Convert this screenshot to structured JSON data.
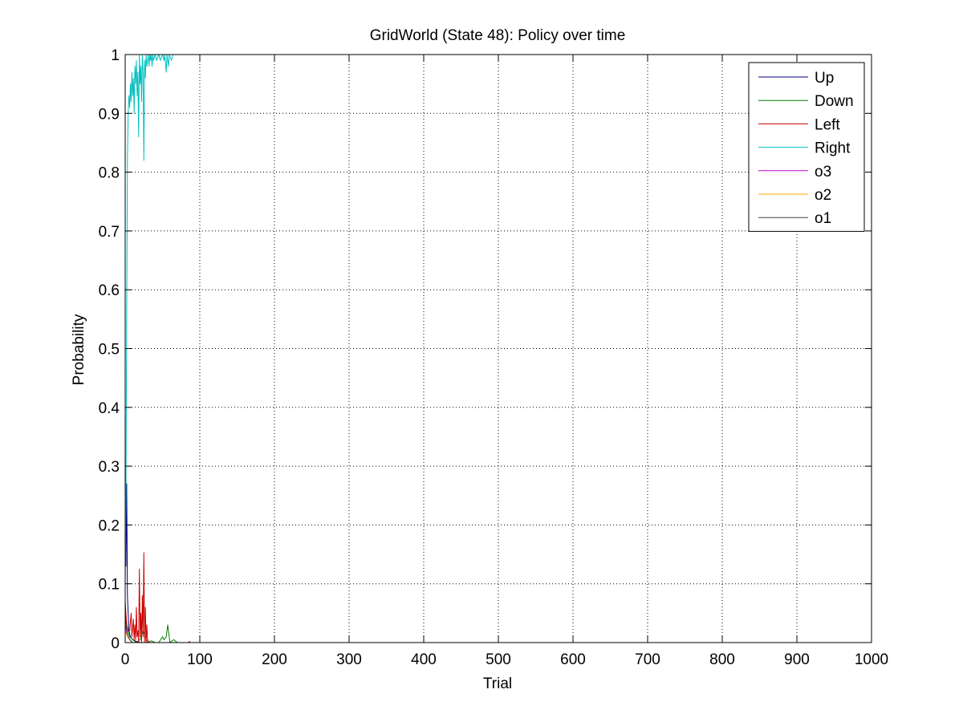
{
  "chart_data": {
    "type": "line",
    "title": "GridWorld (State 48): Policy over time",
    "xlabel": "Trial",
    "ylabel": "Probability",
    "xlim": [
      0,
      1000
    ],
    "ylim": [
      0,
      1
    ],
    "x_ticks": [
      0,
      100,
      200,
      300,
      400,
      500,
      600,
      700,
      800,
      900,
      1000
    ],
    "x_tick_labels": [
      "0",
      "100",
      "200",
      "300",
      "400",
      "500",
      "600",
      "700",
      "800",
      "900",
      "1000"
    ],
    "y_ticks": [
      0,
      0.1,
      0.2,
      0.3,
      0.4,
      0.5,
      0.6,
      0.7,
      0.8,
      0.9,
      1
    ],
    "y_tick_labels": [
      "0",
      "0.1",
      "0.2",
      "0.3",
      "0.4",
      "0.5",
      "0.6",
      "0.7",
      "0.8",
      "0.9",
      "1"
    ],
    "grid": true,
    "grid_style": "dotted",
    "legend_position": "top-right",
    "series": [
      {
        "name": "Up",
        "color": "#00007f",
        "points": [
          [
            0,
            0.25
          ],
          [
            1,
            0.13
          ],
          [
            2,
            0.27
          ],
          [
            3,
            0.08
          ],
          [
            4,
            0.05
          ],
          [
            5,
            0.02
          ],
          [
            7,
            0.01
          ],
          [
            10,
            0.005
          ],
          [
            15,
            0.002
          ],
          [
            20,
            0
          ],
          [
            1000,
            0
          ]
        ]
      },
      {
        "name": "Down",
        "color": "#007f00",
        "points": [
          [
            0,
            0.05
          ],
          [
            2,
            0.03
          ],
          [
            4,
            0.02
          ],
          [
            6,
            0.01
          ],
          [
            10,
            0.005
          ],
          [
            15,
            0
          ],
          [
            20,
            0.005
          ],
          [
            24,
            0.02
          ],
          [
            27,
            0.01
          ],
          [
            30,
            0
          ],
          [
            35,
            0.003
          ],
          [
            40,
            0
          ],
          [
            45,
            0
          ],
          [
            50,
            0.01
          ],
          [
            52,
            0.005
          ],
          [
            55,
            0.01
          ],
          [
            57,
            0.03
          ],
          [
            60,
            0
          ],
          [
            65,
            0.005
          ],
          [
            70,
            0
          ],
          [
            80,
            0
          ],
          [
            1000,
            0
          ]
        ]
      },
      {
        "name": "Left",
        "color": "#cc0000",
        "points": [
          [
            0,
            0.07
          ],
          [
            2,
            0.03
          ],
          [
            4,
            0.02
          ],
          [
            6,
            0.02
          ],
          [
            8,
            0.05
          ],
          [
            9,
            0.01
          ],
          [
            11,
            0.04
          ],
          [
            12,
            0.005
          ],
          [
            13,
            0.03
          ],
          [
            14,
            0.005
          ],
          [
            15,
            0.06
          ],
          [
            16,
            0.01
          ],
          [
            17,
            0.02
          ],
          [
            18,
            0
          ],
          [
            19,
            0.125
          ],
          [
            20,
            0.01
          ],
          [
            21,
            0.05
          ],
          [
            22,
            0
          ],
          [
            23,
            0.08
          ],
          [
            24,
            0.01
          ],
          [
            25,
            0.153
          ],
          [
            26,
            0
          ],
          [
            27,
            0.06
          ],
          [
            28,
            0
          ],
          [
            29,
            0.03
          ],
          [
            30,
            0.005
          ],
          [
            32,
            0
          ],
          [
            40,
            0
          ],
          [
            85,
            0
          ],
          [
            86,
            0.002
          ],
          [
            87,
            0
          ],
          [
            1000,
            0
          ]
        ]
      },
      {
        "name": "Right",
        "color": "#00bfbf",
        "points": [
          [
            0,
            0.1
          ],
          [
            1,
            0.25
          ],
          [
            2,
            0.55
          ],
          [
            3,
            0.82
          ],
          [
            4,
            0.9
          ],
          [
            5,
            0.93
          ],
          [
            6,
            0.91
          ],
          [
            7,
            0.95
          ],
          [
            8,
            0.92
          ],
          [
            9,
            0.97
          ],
          [
            10,
            0.93
          ],
          [
            11,
            0.96
          ],
          [
            12,
            0.9
          ],
          [
            13,
            0.98
          ],
          [
            14,
            0.95
          ],
          [
            15,
            0.99
          ],
          [
            16,
            0.93
          ],
          [
            17,
            0.97
          ],
          [
            18,
            0.86
          ],
          [
            19,
            1.0
          ],
          [
            20,
            0.95
          ],
          [
            21,
            0.98
          ],
          [
            22,
            0.92
          ],
          [
            23,
            1.0
          ],
          [
            24,
            0.97
          ],
          [
            25,
            0.82
          ],
          [
            26,
            0.99
          ],
          [
            27,
            0.96
          ],
          [
            28,
            1.0
          ],
          [
            29,
            0.98
          ],
          [
            30,
            0.99
          ],
          [
            31,
            1.0
          ],
          [
            32,
            0.98
          ],
          [
            33,
            1.0
          ],
          [
            34,
            0.99
          ],
          [
            35,
            1.0
          ],
          [
            36,
            0.98
          ],
          [
            37,
            1.0
          ],
          [
            38,
            0.99
          ],
          [
            40,
            1.0
          ],
          [
            42,
            0.99
          ],
          [
            45,
            1.0
          ],
          [
            47,
            0.99
          ],
          [
            50,
            1.0
          ],
          [
            52,
            0.99
          ],
          [
            53,
            1.0
          ],
          [
            55,
            0.97
          ],
          [
            56,
            1.0
          ],
          [
            58,
            0.98
          ],
          [
            59,
            1.0
          ],
          [
            62,
            0.99
          ],
          [
            64,
            1.0
          ],
          [
            70,
            1.0
          ],
          [
            80,
            1.0
          ]
        ]
      },
      {
        "name": "o3",
        "color": "#bf00bf",
        "points": [
          [
            0,
            0.03
          ],
          [
            3,
            0.01
          ],
          [
            6,
            0.005
          ],
          [
            10,
            0
          ],
          [
            1000,
            0
          ]
        ]
      },
      {
        "name": "o2",
        "color": "#ffaa00",
        "points": [
          [
            0,
            0.02
          ],
          [
            3,
            0.01
          ],
          [
            6,
            0.005
          ],
          [
            10,
            0
          ],
          [
            1000,
            0
          ]
        ]
      },
      {
        "name": "o1",
        "color": "#404040",
        "points": [
          [
            0,
            0.04
          ],
          [
            3,
            0.015
          ],
          [
            6,
            0.005
          ],
          [
            10,
            0
          ],
          [
            1000,
            0
          ]
        ]
      }
    ]
  }
}
